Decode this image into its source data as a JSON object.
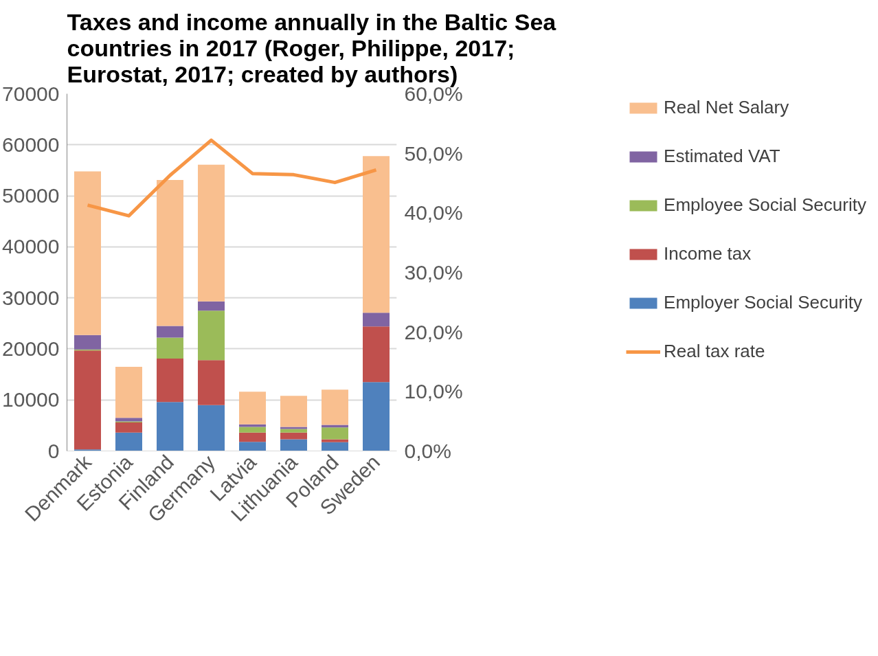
{
  "chart_data": {
    "type": "bar",
    "stacked": true,
    "title": "Taxes and income annually in the Baltic Sea countries in 2017 (Roger, Philippe, 2017; Eurostat, 2017; created by authors)",
    "categories": [
      "Denmark",
      "Estonia",
      "Finland",
      "Germany",
      "Latvia",
      "Lithuania",
      "Poland",
      "Sweden"
    ],
    "series": [
      {
        "name": "Employer Social Security",
        "color": "#4f81bd",
        "values": [
          300,
          3600,
          9600,
          9000,
          1800,
          2300,
          1700,
          13500
        ]
      },
      {
        "name": "Income tax",
        "color": "#c0504d",
        "values": [
          19400,
          2000,
          8500,
          8800,
          1800,
          1300,
          600,
          10900
        ]
      },
      {
        "name": "Employee Social Security",
        "color": "#9bbb59",
        "values": [
          200,
          200,
          4100,
          9700,
          1100,
          700,
          2300,
          0
        ]
      },
      {
        "name": "Estimated VAT",
        "color": "#8064a2",
        "values": [
          2800,
          700,
          2300,
          1800,
          500,
          400,
          500,
          2700
        ]
      },
      {
        "name": "Real Net Salary",
        "color": "#f9bf8f",
        "values": [
          32100,
          10000,
          28600,
          26800,
          6400,
          6100,
          6900,
          30700
        ]
      },
      {
        "name": "Real tax rate",
        "type": "line",
        "axis": "y2",
        "color": "#f79646",
        "values": [
          41.3,
          39.5,
          46.3,
          52.2,
          46.6,
          46.4,
          45.1,
          47.2
        ]
      }
    ],
    "ylim": [
      0,
      70000
    ],
    "yticks": [
      0,
      10000,
      20000,
      30000,
      40000,
      50000,
      60000,
      70000
    ],
    "y2lim": [
      0,
      60
    ],
    "y2ticks": [
      {
        "value": 0,
        "label": "0,0%"
      },
      {
        "value": 10,
        "label": "10,0%"
      },
      {
        "value": 20,
        "label": "20,0%"
      },
      {
        "value": 30,
        "label": "30,0%"
      },
      {
        "value": 40,
        "label": "40,0%"
      },
      {
        "value": 50,
        "label": "50,0%"
      },
      {
        "value": 60,
        "label": "60,0%"
      }
    ],
    "grid": "y",
    "legend": "right",
    "marker": "none",
    "line_style": "solid"
  }
}
